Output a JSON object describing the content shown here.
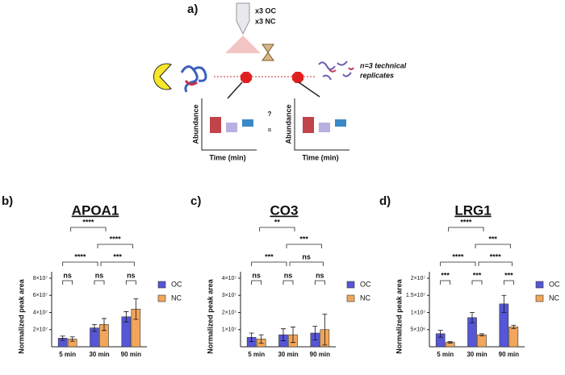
{
  "diagram": {
    "panel_label": "a)",
    "tube_lines": [
      "x3 OC",
      "x3 NC"
    ],
    "replicates_lines": [
      "n=3 technical",
      "replicates"
    ],
    "y_axis_label": "Abundance",
    "x_axis_label": "Time (min)",
    "question": "?",
    "equals": "="
  },
  "chart_data": [
    {
      "type": "bar",
      "panel_label": "b)",
      "title": "APOA1",
      "y_label": "Normalized peak area",
      "categories": [
        "5 min",
        "30 min",
        "90 min"
      ],
      "series": [
        {
          "name": "OC",
          "color": "#5656d6",
          "values": [
            10000000,
            22000000,
            35000000
          ],
          "errors": [
            2500000,
            4000000,
            6000000
          ]
        },
        {
          "name": "NC",
          "color": "#f2a65a",
          "values": [
            9000000,
            26000000,
            44000000
          ],
          "errors": [
            2500000,
            7000000,
            12000000
          ]
        }
      ],
      "ylim": [
        0,
        80000000
      ],
      "yticks": [
        {
          "value": 20000000,
          "label": "2×10⁷"
        },
        {
          "value": 40000000,
          "label": "4×10⁷"
        },
        {
          "value": 60000000,
          "label": "6×10⁷"
        },
        {
          "value": 80000000,
          "label": "8×10⁷"
        }
      ],
      "annotations": [
        "ns",
        "ns",
        "ns",
        "****",
        "***",
        "****",
        "****"
      ]
    },
    {
      "type": "bar",
      "panel_label": "c)",
      "title": "CO3",
      "y_label": "Normalized peak area",
      "categories": [
        "5 min",
        "30 min",
        "90 min"
      ],
      "series": [
        {
          "name": "OC",
          "color": "#5656d6",
          "values": [
            5500000,
            7000000,
            8000000
          ],
          "errors": [
            2500000,
            3500000,
            4000000
          ]
        },
        {
          "name": "NC",
          "color": "#f2a65a",
          "values": [
            4500000,
            7000000,
            10000000
          ],
          "errors": [
            2500000,
            4500000,
            9000000
          ]
        }
      ],
      "ylim": [
        0,
        40000000
      ],
      "yticks": [
        {
          "value": 10000000,
          "label": "1×10⁷"
        },
        {
          "value": 20000000,
          "label": "2×10⁷"
        },
        {
          "value": 30000000,
          "label": "3×10⁷"
        },
        {
          "value": 40000000,
          "label": "4×10⁷"
        }
      ],
      "annotations": [
        "ns",
        "ns",
        "ns",
        "***",
        "ns",
        "***",
        "**"
      ]
    },
    {
      "type": "bar",
      "panel_label": "d)",
      "title": "LRG1",
      "y_label": "Normalized peak area",
      "categories": [
        "5 min",
        "30 min",
        "90 min"
      ],
      "series": [
        {
          "name": "OC",
          "color": "#5656d6",
          "values": [
            3800000,
            8500000,
            12500000
          ],
          "errors": [
            1000000,
            1500000,
            2500000
          ]
        },
        {
          "name": "NC",
          "color": "#f2a65a",
          "values": [
            1300000,
            3500000,
            5800000
          ],
          "errors": [
            200000,
            300000,
            500000
          ]
        }
      ],
      "ylim": [
        0,
        20000000
      ],
      "yticks": [
        {
          "value": 5000000,
          "label": "5×10⁶"
        },
        {
          "value": 10000000,
          "label": "1×10⁷"
        },
        {
          "value": 15000000,
          "label": "1.5×10⁷"
        },
        {
          "value": 20000000,
          "label": "2×10⁷"
        }
      ],
      "annotations": [
        "***",
        "***",
        "***",
        "****",
        "****",
        "***",
        "****"
      ]
    }
  ]
}
